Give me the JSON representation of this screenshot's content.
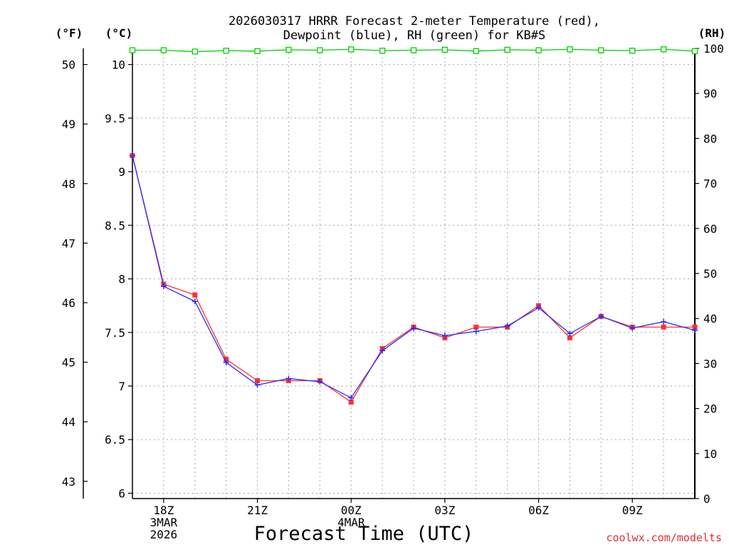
{
  "chart_data": {
    "type": "line",
    "title_line1": "2026030317 HRRR Forecast 2-meter Temperature (red),",
    "title_line2": "Dewpoint (blue), RH (green) for KB#S",
    "xlabel": "Forecast Time (UTC)",
    "watermark": "coolwx.com/modelts",
    "units": {
      "left_f": "(°F)",
      "left_c": "(°C)",
      "right_rh": "(RH)"
    },
    "x_hours": [
      0,
      1,
      2,
      3,
      4,
      5,
      6,
      7,
      8,
      9,
      10,
      11,
      12,
      13,
      14,
      15,
      16,
      17,
      18
    ],
    "xlim": [
      0,
      18
    ],
    "x_ticks": [
      {
        "x": 1,
        "lines": [
          "18Z",
          "3MAR",
          "2026"
        ]
      },
      {
        "x": 4,
        "lines": [
          "21Z"
        ]
      },
      {
        "x": 7,
        "lines": [
          "00Z",
          "4MAR"
        ]
      },
      {
        "x": 10,
        "lines": [
          "03Z"
        ]
      },
      {
        "x": 13,
        "lines": [
          "06Z"
        ]
      },
      {
        "x": 16,
        "lines": [
          "09Z"
        ]
      }
    ],
    "ylim_c": [
      5.95,
      10.15
    ],
    "c_ticks": [
      "6",
      "6.5",
      "7",
      "7.5",
      "8",
      "8.5",
      "9",
      "9.5",
      "10"
    ],
    "f_ticks": [
      "43",
      "44",
      "45",
      "46",
      "47",
      "48",
      "49",
      "50"
    ],
    "rh_lim": [
      0,
      100
    ],
    "rh_ticks": [
      "0",
      "10",
      "20",
      "30",
      "40",
      "50",
      "60",
      "70",
      "80",
      "90",
      "100"
    ],
    "series": [
      {
        "name": "Temperature",
        "color": "#ff3030",
        "values": [
          9.15,
          7.95,
          7.85,
          7.25,
          7.05,
          7.05,
          7.05,
          6.85,
          7.35,
          7.55,
          7.45,
          7.55,
          7.55,
          7.75,
          7.45,
          7.65,
          7.55,
          7.55,
          7.55
        ]
      },
      {
        "name": "Dewpoint",
        "color": "#2b2bff",
        "values": [
          9.15,
          7.93,
          7.79,
          7.22,
          7.01,
          7.07,
          7.04,
          6.89,
          7.33,
          7.54,
          7.47,
          7.51,
          7.56,
          7.73,
          7.49,
          7.65,
          7.54,
          7.6,
          7.52
        ]
      },
      {
        "name": "RH",
        "color": "#00d000",
        "values": [
          99.6,
          99.6,
          99.3,
          99.5,
          99.4,
          99.7,
          99.6,
          99.8,
          99.5,
          99.6,
          99.7,
          99.4,
          99.7,
          99.6,
          99.8,
          99.6,
          99.5,
          99.8,
          99.4
        ]
      }
    ]
  }
}
